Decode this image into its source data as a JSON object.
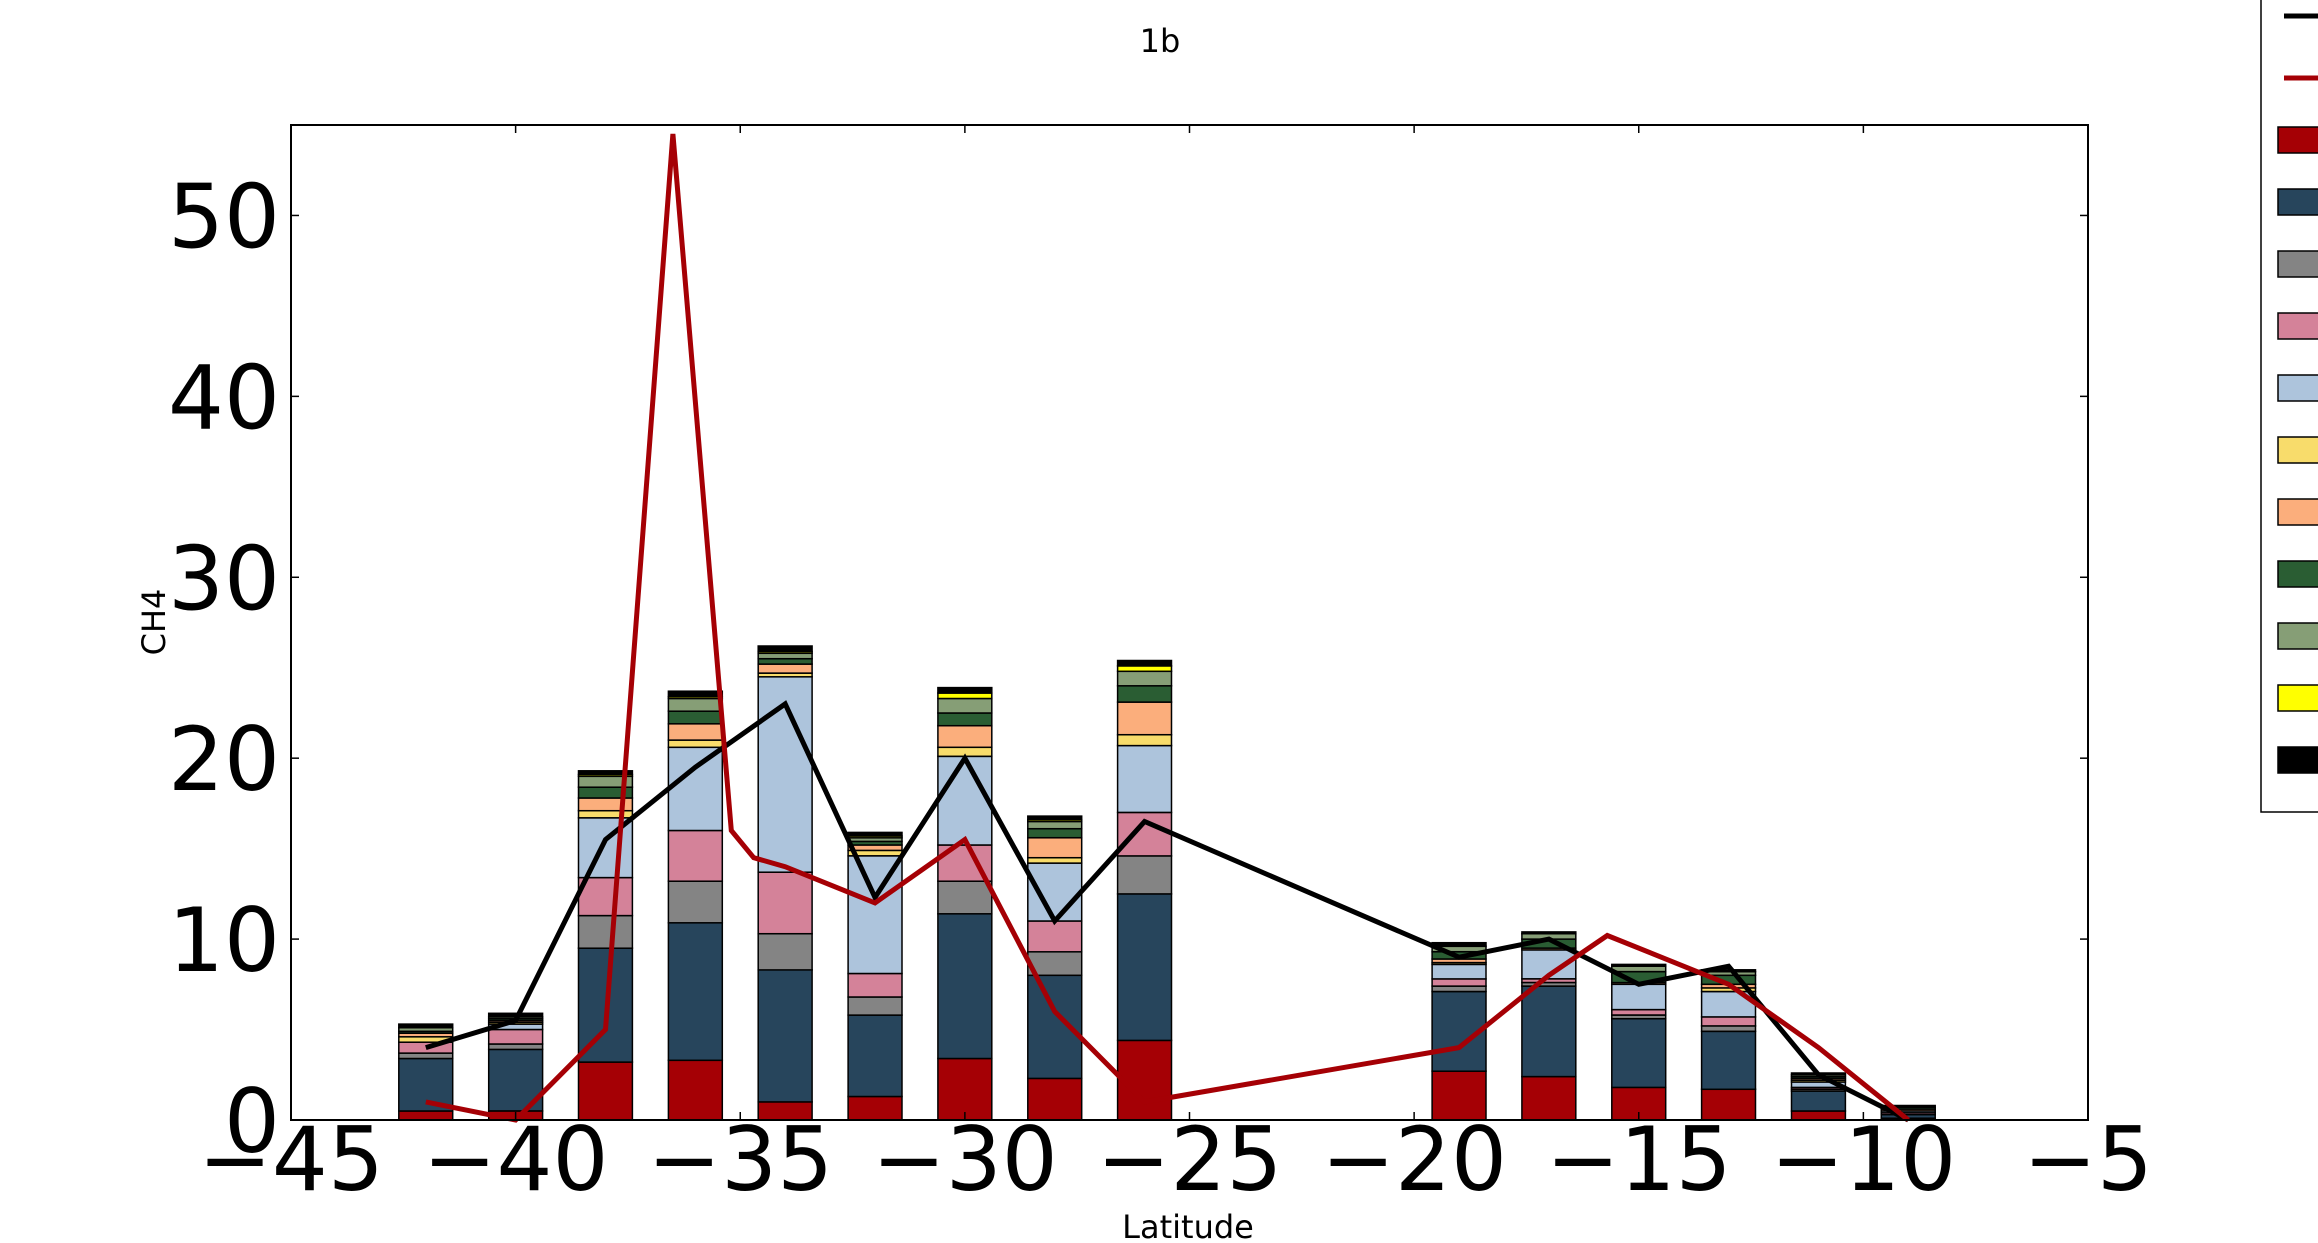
{
  "chart_data": {
    "type": "bar",
    "title": "1b",
    "xlabel": "Latitude",
    "ylabel": "CH4",
    "xlim": [
      -45,
      -5
    ],
    "ylim": [
      0,
      55
    ],
    "xticks": [
      -45,
      -40,
      -35,
      -30,
      -25,
      -20,
      -15,
      -10,
      -5
    ],
    "yticks": [
      0,
      10,
      20,
      30,
      40,
      50
    ],
    "x": [
      -42.0,
      -40.0,
      -38.0,
      -36.0,
      -34.0,
      -32.0,
      -30.0,
      -28.0,
      -26.0,
      -19.0,
      -17.0,
      -15.0,
      -13.0,
      -11.0,
      -9.0
    ],
    "bar_width": 1.2,
    "stacked_series": [
      {
        "color": "#a50005",
        "values": [
          0.5,
          0.5,
          3.2,
          3.3,
          1.0,
          1.3,
          3.4,
          2.3,
          4.4,
          2.7,
          2.4,
          1.8,
          1.7,
          0.5,
          0.1
        ]
      },
      {
        "color": "#27455c",
        "values": [
          2.9,
          3.4,
          6.3,
          7.6,
          7.3,
          4.5,
          8.0,
          5.7,
          8.1,
          4.4,
          5.0,
          3.8,
          3.2,
          1.1,
          0.2
        ]
      },
      {
        "color": "#848484",
        "values": [
          0.3,
          0.3,
          1.8,
          2.3,
          2.0,
          1.0,
          1.8,
          1.3,
          2.1,
          0.3,
          0.2,
          0.2,
          0.3,
          0.1,
          0.0
        ]
      },
      {
        "color": "#d48299",
        "values": [
          0.6,
          0.8,
          2.1,
          2.8,
          3.4,
          1.3,
          2.0,
          1.7,
          2.4,
          0.4,
          0.2,
          0.3,
          0.5,
          0.1,
          0.1
        ]
      },
      {
        "color": "#adc4dc",
        "values": [
          0.0,
          0.3,
          3.3,
          4.6,
          10.8,
          6.5,
          4.9,
          3.2,
          3.7,
          0.8,
          1.6,
          1.4,
          1.4,
          0.3,
          0.1
        ]
      },
      {
        "color": "#f8dc6b",
        "values": [
          0.3,
          0.1,
          0.4,
          0.4,
          0.2,
          0.3,
          0.5,
          0.3,
          0.6,
          0.1,
          0.0,
          0.0,
          0.2,
          0.1,
          0.0
        ]
      },
      {
        "color": "#fbae7c",
        "values": [
          0.2,
          0.1,
          0.7,
          0.9,
          0.5,
          0.3,
          1.2,
          1.1,
          1.8,
          0.2,
          0.1,
          0.1,
          0.2,
          0.1,
          0.1
        ]
      },
      {
        "color": "#2a5d33",
        "values": [
          0.1,
          0.1,
          0.6,
          0.7,
          0.3,
          0.2,
          0.7,
          0.5,
          0.9,
          0.4,
          0.5,
          0.6,
          0.5,
          0.1,
          0.1
        ]
      },
      {
        "color": "#869e76",
        "values": [
          0.2,
          0.1,
          0.6,
          0.7,
          0.3,
          0.2,
          0.8,
          0.4,
          0.8,
          0.3,
          0.3,
          0.3,
          0.2,
          0.1,
          0.0
        ]
      },
      {
        "color": "#ffff00",
        "values": [
          0.0,
          0.0,
          0.1,
          0.1,
          0.1,
          0.1,
          0.3,
          0.1,
          0.3,
          0.0,
          0.0,
          0.0,
          0.0,
          0.0,
          0.0
        ]
      },
      {
        "color": "#000000",
        "values": [
          0.2,
          0.2,
          0.2,
          0.3,
          0.3,
          0.2,
          0.3,
          0.2,
          0.3,
          0.2,
          0.1,
          0.1,
          0.1,
          0.1,
          0.1
        ]
      }
    ],
    "line_series": [
      {
        "color": "#000000",
        "x": [
          -42,
          -40,
          -38,
          -36,
          -34,
          -32,
          -30,
          -28,
          -26,
          -19,
          -17,
          -15,
          -13,
          -11,
          -9
        ],
        "values": [
          4.0,
          5.5,
          15.5,
          19.5,
          23.0,
          12.3,
          20.0,
          11.0,
          16.5,
          9.0,
          10.0,
          7.5,
          8.5,
          2.5,
          0.0
        ]
      },
      {
        "color": "#a50005",
        "x": [
          -42,
          -40,
          -38,
          -36.5,
          -35.2,
          -34.7,
          -34,
          -32,
          -30,
          -28,
          -26,
          -19,
          -17,
          -15.7,
          -13,
          -11,
          -9
        ],
        "values": [
          1.0,
          0.0,
          5.0,
          54.5,
          16.0,
          14.5,
          14.0,
          12.0,
          15.5,
          6.0,
          1.0,
          4.0,
          8.0,
          10.2,
          7.5,
          4.0,
          0.0
        ]
      }
    ],
    "legend": {
      "placement": "upper-right-outside",
      "markers": [
        "line",
        "line",
        "patch",
        "patch",
        "patch",
        "patch",
        "patch",
        "patch",
        "patch",
        "patch",
        "patch",
        "patch",
        "patch"
      ],
      "colors": [
        "#000000",
        "#a50005",
        "#a50005",
        "#27455c",
        "#848484",
        "#d48299",
        "#adc4dc",
        "#f8dc6b",
        "#fbae7c",
        "#2a5d33",
        "#869e76",
        "#ffff00",
        "#000000"
      ]
    },
    "grid": false
  }
}
